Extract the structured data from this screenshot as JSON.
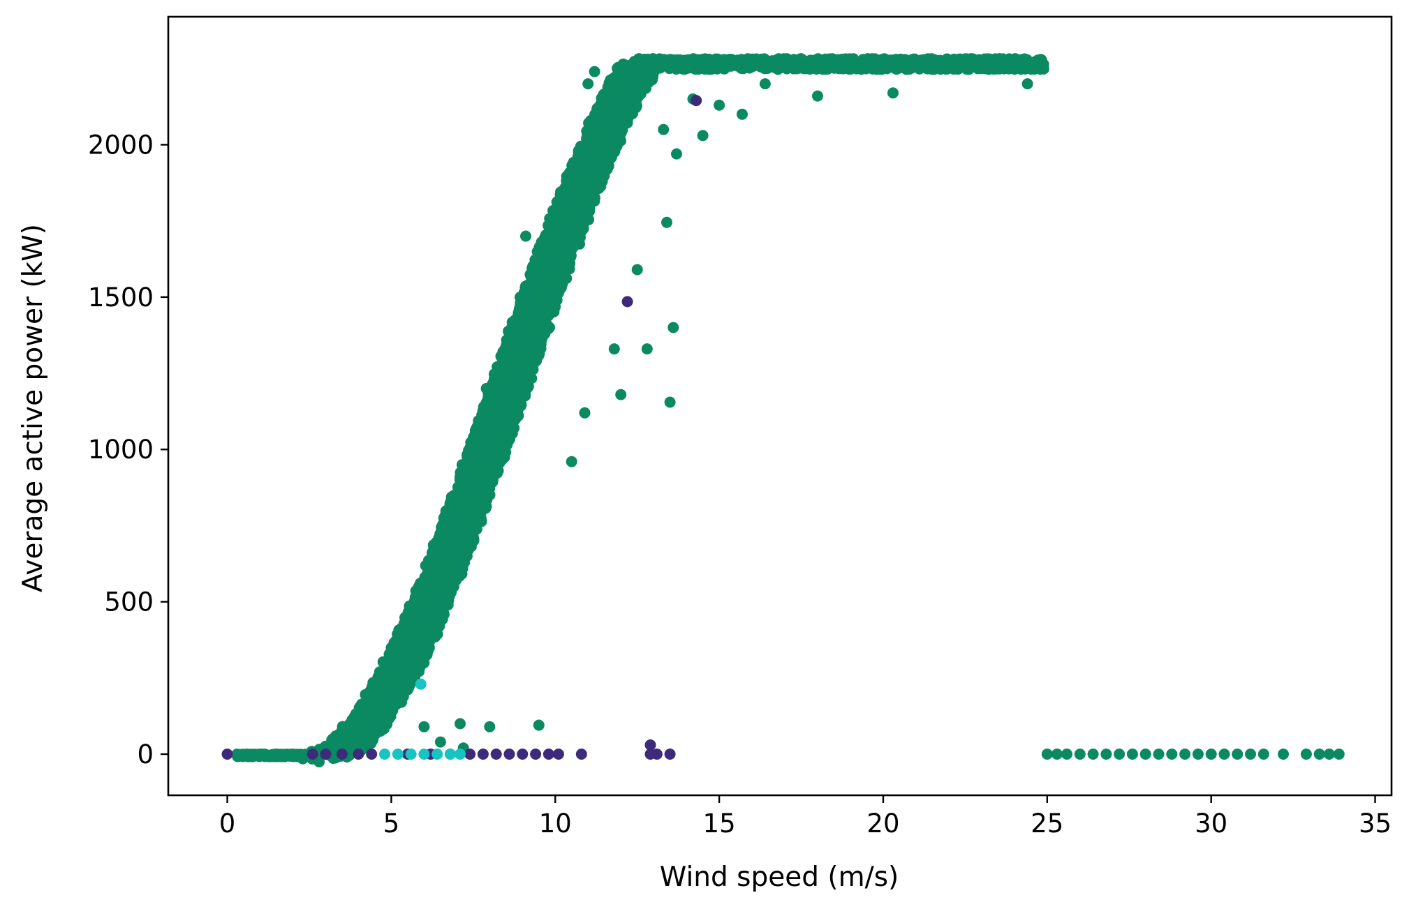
{
  "chart_data": {
    "type": "scatter",
    "title": "",
    "xlabel": "Wind speed (m/s)",
    "ylabel": "Average active power (kW)",
    "xlim": [
      -1.8,
      35.5
    ],
    "ylim": [
      -135,
      2420
    ],
    "xticks": [
      0,
      5,
      10,
      15,
      20,
      25,
      30,
      35
    ],
    "yticks": [
      0,
      500,
      1000,
      1500,
      2000
    ],
    "grid": false,
    "legend": "none",
    "colors": {
      "normal": "#0b8a62",
      "fault_a": "#3d2a7a",
      "fault_b": "#17c3c3"
    },
    "power_curve": {
      "cut_in_speed": 3.0,
      "rated_speed": 12.6,
      "rated_power": 2265,
      "cut_out_speed": 25.0,
      "point_count": 6000
    },
    "series": [
      {
        "color": "#0b8a62",
        "points": [
          [
            0.3,
            0
          ],
          [
            0.6,
            0
          ],
          [
            1.0,
            0
          ],
          [
            1.5,
            0
          ],
          [
            2.0,
            0
          ],
          [
            2.5,
            -5
          ],
          [
            2.3,
            -15
          ],
          [
            2.8,
            -25
          ],
          [
            25.0,
            0
          ],
          [
            25.3,
            0
          ],
          [
            25.6,
            0
          ],
          [
            26.0,
            0
          ],
          [
            26.4,
            0
          ],
          [
            26.8,
            0
          ],
          [
            27.2,
            0
          ],
          [
            27.6,
            0
          ],
          [
            28.0,
            0
          ],
          [
            28.4,
            0
          ],
          [
            28.8,
            0
          ],
          [
            29.2,
            0
          ],
          [
            29.6,
            0
          ],
          [
            30.0,
            0
          ],
          [
            30.4,
            0
          ],
          [
            30.8,
            0
          ],
          [
            31.2,
            0
          ],
          [
            31.6,
            0
          ],
          [
            32.2,
            0
          ],
          [
            32.9,
            0
          ],
          [
            33.3,
            0
          ],
          [
            33.6,
            0
          ],
          [
            33.9,
            0
          ],
          [
            6.0,
            90
          ],
          [
            7.1,
            100
          ],
          [
            8.0,
            90
          ],
          [
            9.5,
            95
          ],
          [
            7.2,
            20
          ],
          [
            6.5,
            40
          ],
          [
            12.0,
            1180
          ],
          [
            12.8,
            1330
          ],
          [
            13.5,
            1155
          ],
          [
            13.6,
            1400
          ],
          [
            11.8,
            1330
          ],
          [
            12.5,
            1590
          ],
          [
            13.4,
            1745
          ],
          [
            10.9,
            1120
          ],
          [
            10.5,
            960
          ],
          [
            7.9,
            1200
          ],
          [
            8.8,
            1200
          ],
          [
            9.2,
            1430
          ],
          [
            9.5,
            1510
          ],
          [
            9.1,
            1700
          ],
          [
            10.2,
            1750
          ],
          [
            13.7,
            1970
          ],
          [
            14.5,
            2030
          ],
          [
            15.0,
            2130
          ],
          [
            15.7,
            2100
          ],
          [
            16.4,
            2200
          ],
          [
            18.0,
            2160
          ],
          [
            20.3,
            2170
          ],
          [
            24.4,
            2200
          ],
          [
            14.2,
            2150
          ],
          [
            13.3,
            2050
          ],
          [
            11.2,
            2240
          ],
          [
            11.0,
            2200
          ],
          [
            24.8,
            2280
          ],
          [
            24.6,
            2265
          ],
          [
            23.5,
            2270
          ],
          [
            22.0,
            2265
          ],
          [
            20.0,
            2270
          ],
          [
            18.5,
            2270
          ],
          [
            17.0,
            2265
          ]
        ]
      },
      {
        "color": "#3d2a7a",
        "points": [
          [
            0.0,
            0
          ],
          [
            2.6,
            0
          ],
          [
            3.0,
            0
          ],
          [
            3.5,
            0
          ],
          [
            4.0,
            0
          ],
          [
            4.4,
            0
          ],
          [
            5.5,
            0
          ],
          [
            6.2,
            0
          ],
          [
            6.8,
            0
          ],
          [
            7.4,
            0
          ],
          [
            7.8,
            0
          ],
          [
            8.2,
            0
          ],
          [
            8.6,
            0
          ],
          [
            9.0,
            0
          ],
          [
            9.4,
            0
          ],
          [
            9.8,
            0
          ],
          [
            10.1,
            0
          ],
          [
            10.8,
            0
          ],
          [
            12.9,
            30
          ],
          [
            12.9,
            0
          ],
          [
            13.1,
            0
          ],
          [
            13.5,
            0
          ],
          [
            12.2,
            1485
          ],
          [
            14.3,
            2145
          ]
        ]
      },
      {
        "color": "#17c3c3",
        "points": [
          [
            4.8,
            0
          ],
          [
            5.2,
            0
          ],
          [
            5.6,
            0
          ],
          [
            6.0,
            0
          ],
          [
            6.4,
            0
          ],
          [
            6.8,
            0
          ],
          [
            7.1,
            0
          ],
          [
            5.9,
            230
          ]
        ]
      }
    ]
  }
}
